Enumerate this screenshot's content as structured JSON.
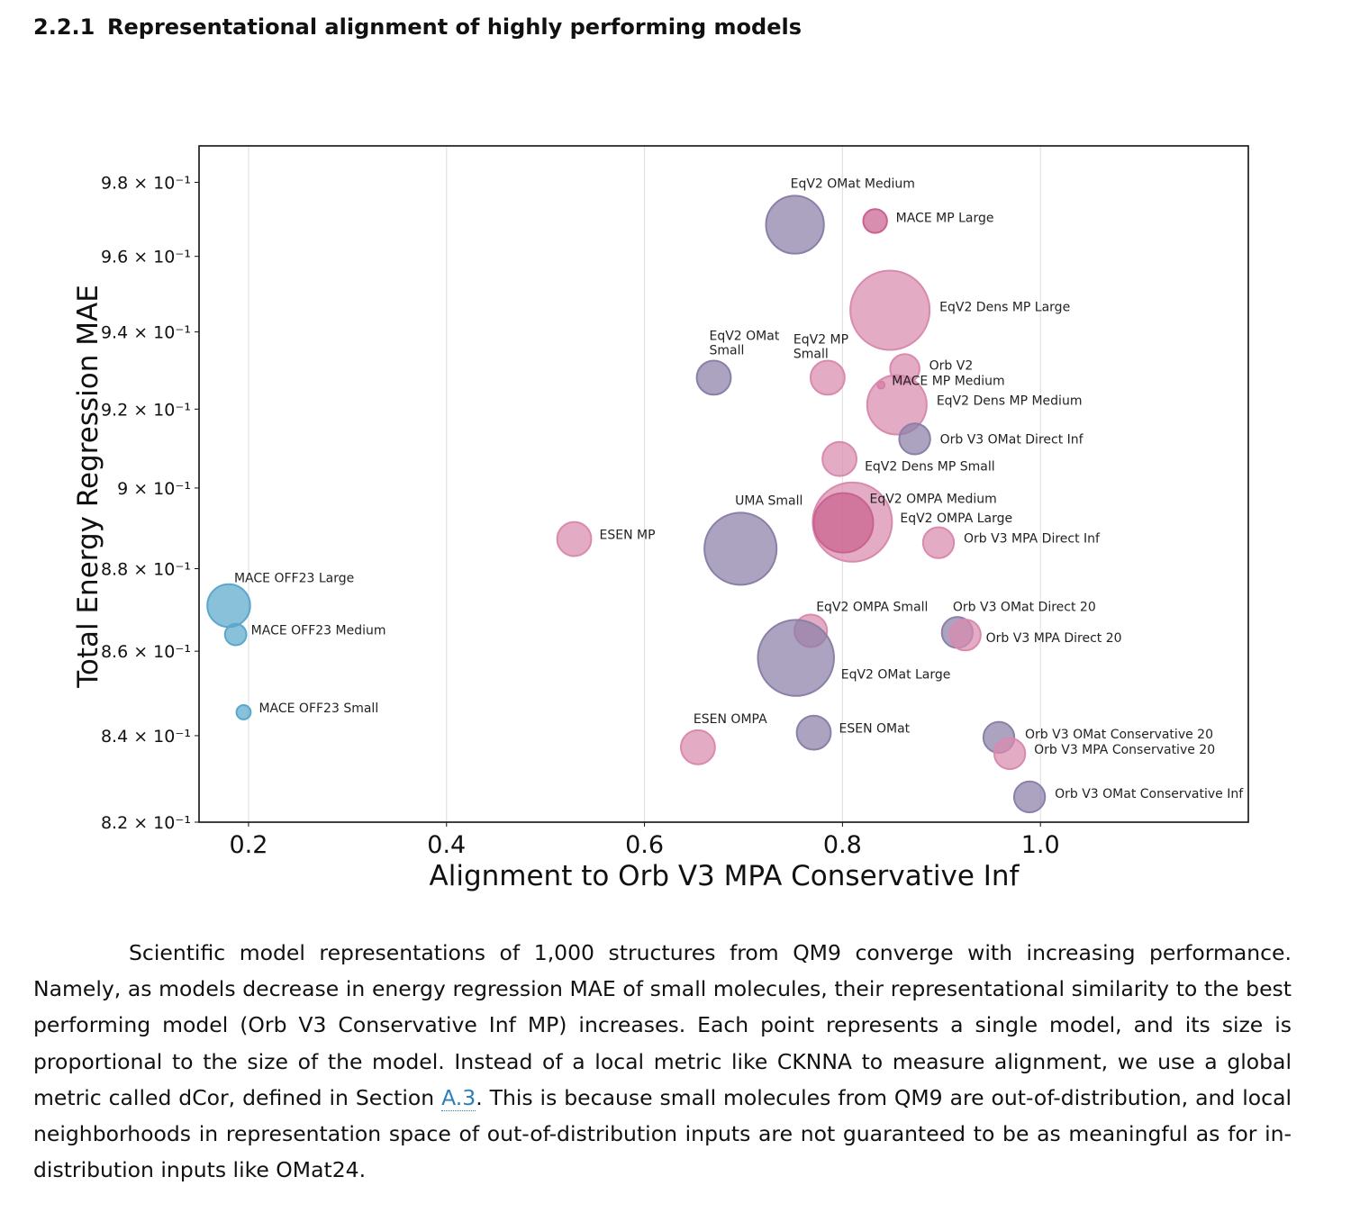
{
  "section": {
    "number": "2.2.1",
    "title": "Representational alignment of highly performing models"
  },
  "chart_data": {
    "type": "scatter",
    "xlabel": "Alignment to Orb V3 MPA Conservative Inf",
    "ylabel": "Total Energy Regression MAE",
    "x_scale": "linear",
    "y_scale": "log",
    "xlim": [
      0.15,
      1.21
    ],
    "ylim": [
      0.82,
      0.99
    ],
    "x_ticks": [
      {
        "value": 0.2,
        "label": "0.2"
      },
      {
        "value": 0.4,
        "label": "0.4"
      },
      {
        "value": 0.6,
        "label": "0.6"
      },
      {
        "value": 0.8,
        "label": "0.8"
      },
      {
        "value": 1.0,
        "label": "1.0"
      }
    ],
    "y_ticks": [
      {
        "value": 0.98,
        "label": "9.8 × 10⁻¹"
      },
      {
        "value": 0.96,
        "label": "9.6 × 10⁻¹"
      },
      {
        "value": 0.94,
        "label": "9.4 × 10⁻¹"
      },
      {
        "value": 0.92,
        "label": "9.2 × 10⁻¹"
      },
      {
        "value": 0.9,
        "label": "9 × 10⁻¹"
      },
      {
        "value": 0.88,
        "label": "8.8 × 10⁻¹"
      },
      {
        "value": 0.86,
        "label": "8.6 × 10⁻¹"
      },
      {
        "value": 0.84,
        "label": "8.4 × 10⁻¹"
      },
      {
        "value": 0.82,
        "label": "8.2 × 10⁻¹"
      }
    ],
    "grid": "vertical lines at x ticks",
    "marker_size_meaning": "proportional to model size (relative)",
    "colors": {
      "omat": "#8a80a8",
      "mp": "#d98aae",
      "mp_dark": "#c9628f",
      "off23": "#5ba7cc"
    },
    "points": [
      {
        "label": "EqV2 OMat Medium",
        "x": 0.752,
        "y": 0.9685,
        "size": 0.73,
        "color": "#8a80a8"
      },
      {
        "label": "MACE MP Large",
        "x": 0.833,
        "y": 0.9695,
        "size": 0.3,
        "color": "#c9628f"
      },
      {
        "label": "EqV2 Dens MP Large",
        "x": 0.848,
        "y": 0.9457,
        "size": 1.0,
        "color": "#d98aae"
      },
      {
        "label": "EqV2 OMat Small",
        "x": 0.67,
        "y": 0.9281,
        "size": 0.43,
        "color": "#8a80a8"
      },
      {
        "label": "EqV2 MP Small",
        "x": 0.785,
        "y": 0.9281,
        "size": 0.43,
        "color": "#d98aae"
      },
      {
        "label": "Orb V2",
        "x": 0.863,
        "y": 0.9304,
        "size": 0.37,
        "color": "#d98aae"
      },
      {
        "label": "MACE MP Medium",
        "x": 0.839,
        "y": 0.9262,
        "size": 0.09,
        "color": "#c9628f"
      },
      {
        "label": "EqV2 Dens MP Medium",
        "x": 0.855,
        "y": 0.9211,
        "size": 0.75,
        "color": "#d98aae"
      },
      {
        "label": "Orb V3 OMat Direct Inf",
        "x": 0.873,
        "y": 0.9124,
        "size": 0.39,
        "color": "#8a80a8"
      },
      {
        "label": "EqV2 Dens MP Small",
        "x": 0.797,
        "y": 0.9073,
        "size": 0.43,
        "color": "#d98aae"
      },
      {
        "label": "UMA Small",
        "x": 0.697,
        "y": 0.8849,
        "size": 0.91,
        "color": "#8a80a8"
      },
      {
        "label": "EqV2 OMPA Large",
        "x": 0.81,
        "y": 0.8915,
        "size": 1.0,
        "color": "#d98aae"
      },
      {
        "label": "EqV2 OMPA Medium",
        "x": 0.801,
        "y": 0.8913,
        "size": 0.75,
        "color": "#c9628f"
      },
      {
        "label": "Orb V3 MPA Direct Inf",
        "x": 0.897,
        "y": 0.8864,
        "size": 0.39,
        "color": "#d98aae"
      },
      {
        "label": "ESEN MP",
        "x": 0.529,
        "y": 0.8873,
        "size": 0.43,
        "color": "#d98aae"
      },
      {
        "label": "MACE OFF23 Large",
        "x": 0.18,
        "y": 0.871,
        "size": 0.54,
        "color": "#5ba7cc"
      },
      {
        "label": "MACE OFF23 Medium",
        "x": 0.187,
        "y": 0.864,
        "size": 0.27,
        "color": "#5ba7cc"
      },
      {
        "label": "MACE OFF23 Small",
        "x": 0.195,
        "y": 0.8455,
        "size": 0.18,
        "color": "#5ba7cc"
      },
      {
        "label": "EqV2 OMPA Small",
        "x": 0.768,
        "y": 0.8649,
        "size": 0.41,
        "color": "#d98aae"
      },
      {
        "label": "EqV2 OMat Large",
        "x": 0.753,
        "y": 0.8584,
        "size": 0.96,
        "color": "#8a80a8"
      },
      {
        "label": "Orb V3 OMat Direct 20",
        "x": 0.916,
        "y": 0.8645,
        "size": 0.39,
        "color": "#8a80a8"
      },
      {
        "label": "Orb V3 MPA Direct 20",
        "x": 0.924,
        "y": 0.8639,
        "size": 0.39,
        "color": "#d98aae"
      },
      {
        "label": "ESEN OMPA",
        "x": 0.654,
        "y": 0.8373,
        "size": 0.43,
        "color": "#d98aae"
      },
      {
        "label": "ESEN OMat",
        "x": 0.771,
        "y": 0.8407,
        "size": 0.43,
        "color": "#8a80a8"
      },
      {
        "label": "Orb V3 OMat Conservative 20",
        "x": 0.958,
        "y": 0.8396,
        "size": 0.39,
        "color": "#8a80a8"
      },
      {
        "label": "Orb V3 MPA Conservative 20",
        "x": 0.969,
        "y": 0.8358,
        "size": 0.39,
        "color": "#d98aae"
      },
      {
        "label": "Orb V3 OMat Conservative Inf",
        "x": 0.989,
        "y": 0.8258,
        "size": 0.39,
        "color": "#8a80a8"
      }
    ]
  },
  "caption": {
    "text_before_link": "Scientific model representations of 1,000 structures from QM9 converge with increasing performance. Namely, as models decrease in energy regression MAE of small molecules, their representational similarity to the best performing model (Orb V3 Conservative Inf MP) increases. Each point represents a single model, and its size is proportional to the size of the model. Instead of a local metric like CKNNA to measure alignment, we use a global metric called dCor, defined in Section ",
    "link_text": "A.3",
    "text_after_link": ". This is because small molecules from QM9 are out-of-distribution, and local neighborhoods in representation space of out-of-distribution inputs are not guaranteed to be as meaningful as for in-distribution inputs like OMat24."
  }
}
